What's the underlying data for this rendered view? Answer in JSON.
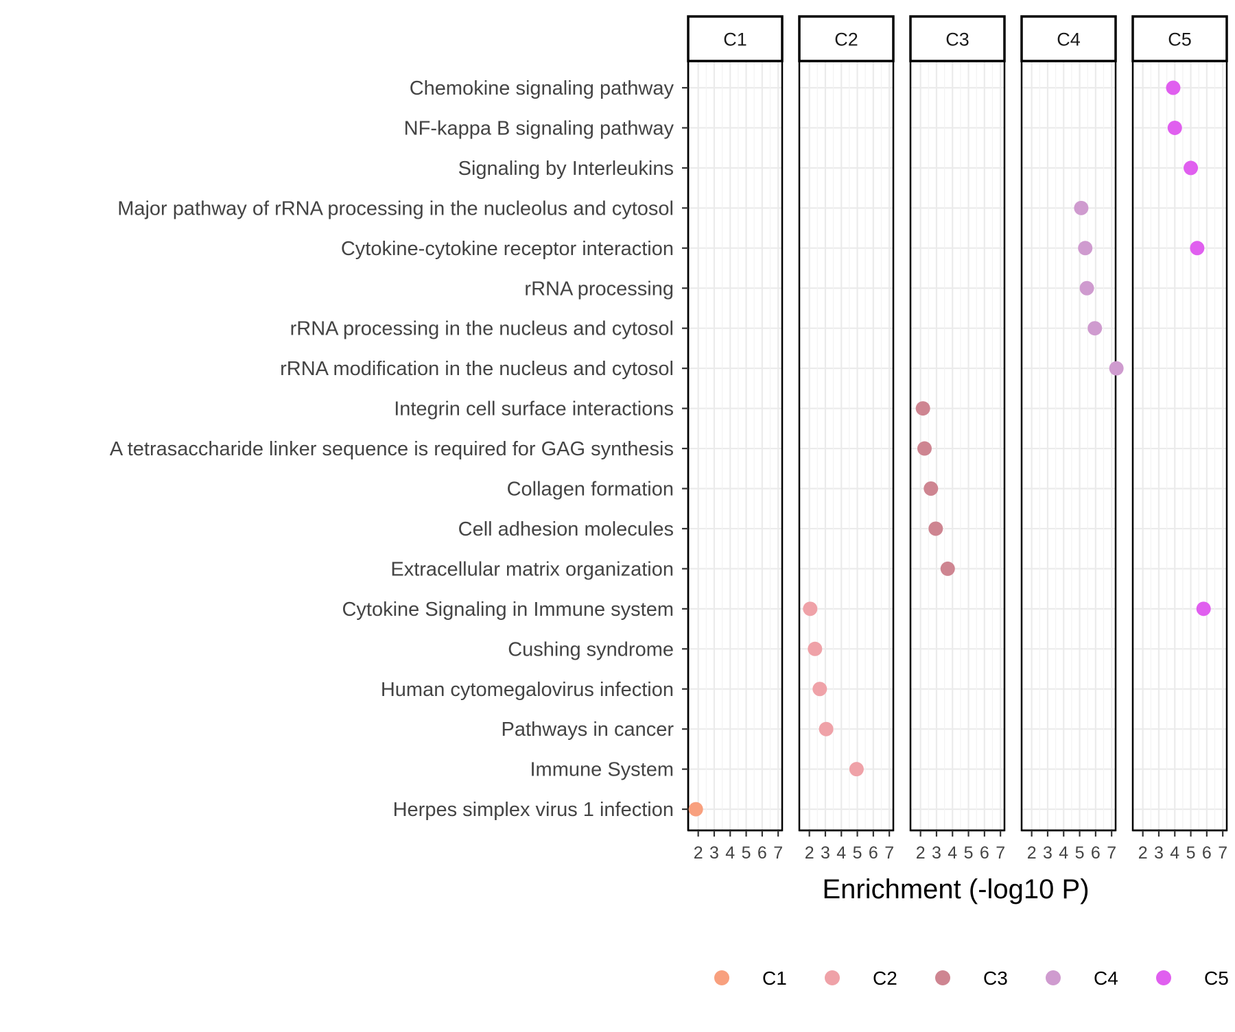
{
  "chart_data": {
    "type": "scatter",
    "xlabel": "Enrichment (-log10 P)",
    "xlim": [
      1.5,
      7.3
    ],
    "xticks": [
      2,
      3,
      4,
      5,
      6,
      7
    ],
    "grid": true,
    "legend_position": "bottom",
    "facets": [
      "C1",
      "C2",
      "C3",
      "C4",
      "C5"
    ],
    "categories": [
      "Chemokine signaling pathway",
      "NF-kappa B signaling pathway",
      "Signaling by Interleukins",
      "Major pathway of rRNA processing in the nucleolus and cytosol",
      "Cytokine-cytokine receptor interaction",
      "rRNA processing",
      "rRNA processing in the nucleus and cytosol",
      "rRNA modification in the nucleus and cytosol",
      "Integrin cell surface interactions",
      "A tetrasaccharide linker sequence is required for GAG synthesis",
      "Collagen formation",
      "Cell adhesion molecules",
      "Extracellular matrix organization",
      "Cytokine Signaling in Immune system",
      "Cushing syndrome",
      "Human cytomegalovirus infection",
      "Pathways in cancer",
      "Immune System",
      "Herpes simplex virus 1 infection"
    ],
    "series": [
      {
        "name": "C1",
        "color": "#F8A07E",
        "points": [
          {
            "term": "Herpes simplex virus 1 infection",
            "x": 1.85
          }
        ]
      },
      {
        "name": "C2",
        "color": "#EFA2A8",
        "points": [
          {
            "term": "Cytokine Signaling in Immune system",
            "x": 2.05
          },
          {
            "term": "Cushing syndrome",
            "x": 2.35
          },
          {
            "term": "Human cytomegalovirus infection",
            "x": 2.65
          },
          {
            "term": "Pathways in cancer",
            "x": 3.05
          },
          {
            "term": "Immune System",
            "x": 4.95
          }
        ]
      },
      {
        "name": "C3",
        "color": "#CE8591",
        "points": [
          {
            "term": "Integrin cell surface interactions",
            "x": 2.15
          },
          {
            "term": "A tetrasaccharide linker sequence is required for GAG synthesis",
            "x": 2.25
          },
          {
            "term": "Collagen formation",
            "x": 2.65
          },
          {
            "term": "Cell adhesion molecules",
            "x": 2.95
          },
          {
            "term": "Extracellular matrix organization",
            "x": 3.7
          }
        ]
      },
      {
        "name": "C4",
        "color": "#CF9BCF",
        "points": [
          {
            "term": "Major pathway of rRNA processing in the nucleolus and cytosol",
            "x": 5.1
          },
          {
            "term": "Cytokine-cytokine receptor interaction",
            "x": 5.35
          },
          {
            "term": "rRNA processing",
            "x": 5.45
          },
          {
            "term": "rRNA processing in the nucleus and cytosol",
            "x": 5.95
          },
          {
            "term": "rRNA modification in the nucleus and cytosol",
            "x": 7.3
          }
        ]
      },
      {
        "name": "C5",
        "color": "#E05FEF",
        "points": [
          {
            "term": "Chemokine signaling pathway",
            "x": 3.9
          },
          {
            "term": "NF-kappa B signaling pathway",
            "x": 4.0
          },
          {
            "term": "Signaling by Interleukins",
            "x": 5.0
          },
          {
            "term": "Cytokine-cytokine receptor interaction",
            "x": 5.4
          },
          {
            "term": "Cytokine Signaling in Immune system",
            "x": 5.8
          }
        ]
      }
    ]
  }
}
